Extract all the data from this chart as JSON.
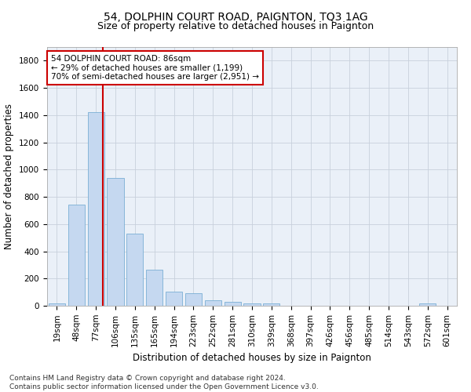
{
  "title": "54, DOLPHIN COURT ROAD, PAIGNTON, TQ3 1AG",
  "subtitle": "Size of property relative to detached houses in Paignton",
  "xlabel": "Distribution of detached houses by size in Paignton",
  "ylabel": "Number of detached properties",
  "bar_labels": [
    "19sqm",
    "48sqm",
    "77sqm",
    "106sqm",
    "135sqm",
    "165sqm",
    "194sqm",
    "223sqm",
    "252sqm",
    "281sqm",
    "310sqm",
    "339sqm",
    "368sqm",
    "397sqm",
    "426sqm",
    "456sqm",
    "485sqm",
    "514sqm",
    "543sqm",
    "572sqm",
    "601sqm"
  ],
  "bar_values": [
    20,
    740,
    1420,
    940,
    530,
    265,
    105,
    95,
    40,
    28,
    15,
    15,
    0,
    0,
    0,
    0,
    0,
    0,
    0,
    15,
    0
  ],
  "bar_color": "#c5d8f0",
  "bar_edge_color": "#7aafd4",
  "vline_x": 2.35,
  "vline_color": "#cc0000",
  "annotation_text": "54 DOLPHIN COURT ROAD: 86sqm\n← 29% of detached houses are smaller (1,199)\n70% of semi-detached houses are larger (2,951) →",
  "annotation_box_color": "#ffffff",
  "annotation_box_edge": "#cc0000",
  "ylim": [
    0,
    1900
  ],
  "yticks": [
    0,
    200,
    400,
    600,
    800,
    1000,
    1200,
    1400,
    1600,
    1800
  ],
  "background_color": "#ffffff",
  "plot_bg_color": "#eaf0f8",
  "grid_color": "#c8d0dc",
  "footer": "Contains HM Land Registry data © Crown copyright and database right 2024.\nContains public sector information licensed under the Open Government Licence v3.0.",
  "title_fontsize": 10,
  "subtitle_fontsize": 9,
  "xlabel_fontsize": 8.5,
  "ylabel_fontsize": 8.5,
  "tick_fontsize": 7.5,
  "annotation_fontsize": 7.5,
  "footer_fontsize": 6.5
}
